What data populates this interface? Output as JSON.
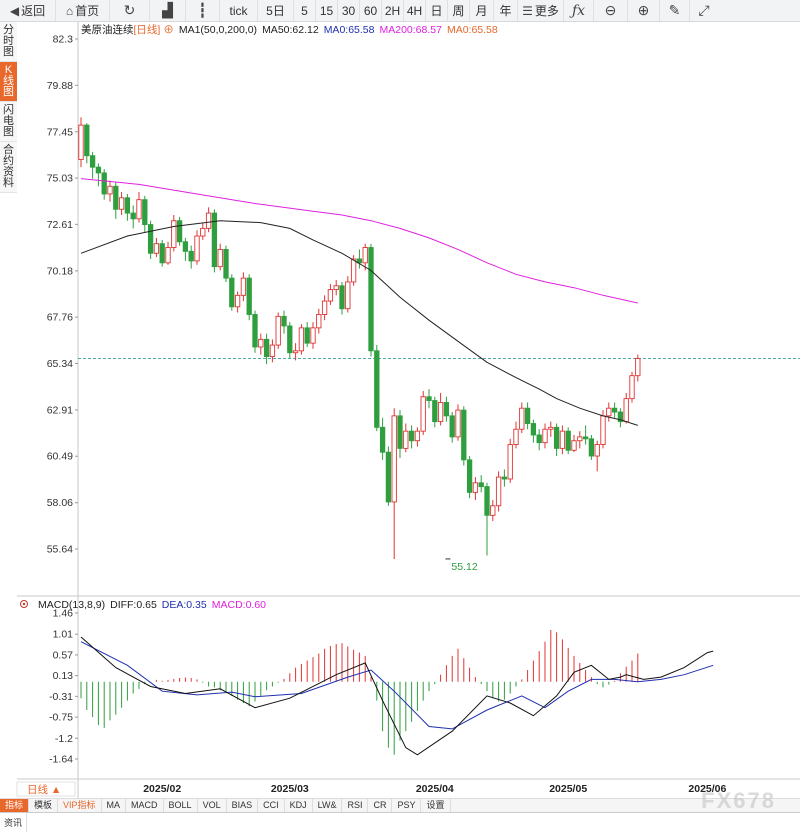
{
  "toolbar": {
    "back": "返回",
    "home": "首页",
    "tick": "tick",
    "periods": [
      "5日",
      "5",
      "15",
      "30",
      "60",
      "2H",
      "4H",
      "日",
      "周",
      "月",
      "年"
    ],
    "more": "更多"
  },
  "side_tabs": [
    {
      "label": "分时图",
      "active": false
    },
    {
      "label": "K线图",
      "active": true
    },
    {
      "label": "闪电图",
      "active": false
    },
    {
      "label": "合约资料",
      "active": false
    }
  ],
  "header": {
    "symbol": "美原油连续",
    "period": "[日线]",
    "ma1": "MA1(50,0,200,0)",
    "ma50": "MA50:62.12",
    "ma0a": "MA0:65.58",
    "ma200": "MA200:68.57",
    "ma0b": "MA0:65.58"
  },
  "macd_header": {
    "name": "MACD(13,8,9)",
    "diff": "DIFF:0.65",
    "dea": "DEA:0.35",
    "macd": "MACD:0.60"
  },
  "period_selector": "日线 ▲",
  "bottom_tabs": [
    "指标",
    "模板",
    "VIP指标",
    "MA",
    "MACD",
    "BOLL",
    "VOL",
    "BIAS",
    "CCI",
    "KDJ",
    "LW&",
    "RSI",
    "CR",
    "PSY",
    "设置"
  ],
  "news_tab": "资讯",
  "watermark": "FX678",
  "colors": {
    "up": "#e03434",
    "down": "#2e9e3e",
    "ma50": "#222222",
    "ma200": "#e020e0",
    "dea": "#1f2fb0",
    "last": "#1a8a8a",
    "accent": "#e8672a"
  },
  "chart_data": [
    {
      "type": "candlestick",
      "title": "美原油连续 [日线]",
      "ylim": [
        54.5,
        82.3
      ],
      "y_ticks": [
        82.3,
        79.88,
        77.45,
        75.03,
        72.61,
        70.18,
        67.76,
        65.34,
        62.91,
        60.49,
        58.06,
        55.64
      ],
      "x_ticks": [
        "2025/02",
        "2025/03",
        "2025/04",
        "2025/05",
        "2025/06"
      ],
      "x_tick_index": [
        14,
        36,
        61,
        84,
        108
      ],
      "last_price_line": 65.6,
      "low_annotation": {
        "index": 63,
        "value": 55.12,
        "label": "55.12"
      },
      "candles": [
        [
          76.0,
          77.8,
          78.2,
          75.6
        ],
        [
          77.8,
          76.2,
          77.9,
          75.8
        ],
        [
          76.2,
          75.6,
          76.4,
          75.0
        ],
        [
          75.6,
          75.3,
          75.8,
          74.6
        ],
        [
          75.3,
          74.2,
          75.5,
          73.9
        ],
        [
          74.2,
          74.6,
          74.9,
          73.8
        ],
        [
          74.6,
          73.4,
          74.8,
          72.9
        ],
        [
          73.4,
          74.0,
          74.3,
          73.1
        ],
        [
          74.0,
          73.2,
          74.2,
          72.8
        ],
        [
          73.2,
          72.9,
          73.6,
          72.4
        ],
        [
          72.9,
          73.9,
          74.3,
          72.7
        ],
        [
          73.9,
          72.6,
          74.1,
          72.2
        ],
        [
          72.6,
          71.1,
          72.8,
          70.8
        ],
        [
          71.1,
          71.6,
          71.9,
          70.9
        ],
        [
          71.6,
          70.6,
          71.8,
          70.4
        ],
        [
          70.6,
          71.4,
          71.7,
          70.5
        ],
        [
          71.4,
          72.8,
          73.1,
          71.2
        ],
        [
          72.8,
          71.7,
          73.0,
          71.5
        ],
        [
          71.7,
          71.2,
          71.9,
          70.7
        ],
        [
          71.2,
          70.7,
          71.5,
          70.3
        ],
        [
          70.7,
          72.0,
          72.3,
          70.5
        ],
        [
          72.0,
          72.4,
          72.7,
          71.8
        ],
        [
          72.4,
          73.2,
          73.5,
          72.2
        ],
        [
          73.2,
          70.4,
          73.4,
          70.1
        ],
        [
          70.4,
          71.3,
          71.6,
          70.2
        ],
        [
          71.3,
          69.8,
          71.5,
          69.6
        ],
        [
          69.8,
          68.3,
          70.0,
          68.1
        ],
        [
          68.3,
          68.9,
          69.1,
          68.0
        ],
        [
          68.9,
          69.8,
          70.1,
          68.6
        ],
        [
          69.8,
          67.9,
          70.0,
          67.6
        ],
        [
          67.9,
          66.2,
          68.1,
          65.9
        ],
        [
          66.2,
          66.6,
          66.9,
          65.8
        ],
        [
          66.6,
          65.7,
          66.9,
          65.3
        ],
        [
          65.7,
          66.3,
          66.6,
          65.4
        ],
        [
          66.3,
          67.8,
          68.0,
          66.1
        ],
        [
          67.8,
          67.3,
          68.1,
          66.9
        ],
        [
          67.3,
          65.9,
          67.5,
          65.6
        ],
        [
          65.9,
          66.0,
          66.4,
          65.5
        ],
        [
          66.0,
          67.2,
          67.4,
          65.8
        ],
        [
          67.2,
          66.4,
          67.5,
          66.2
        ],
        [
          66.4,
          67.2,
          67.5,
          66.1
        ],
        [
          67.2,
          67.9,
          68.2,
          66.9
        ],
        [
          67.9,
          68.6,
          68.9,
          67.6
        ],
        [
          68.6,
          69.2,
          69.5,
          68.4
        ],
        [
          69.2,
          69.4,
          69.7,
          68.9
        ],
        [
          69.4,
          68.2,
          69.6,
          67.9
        ],
        [
          68.2,
          69.6,
          69.9,
          68.0
        ],
        [
          69.6,
          70.8,
          71.0,
          69.4
        ],
        [
          70.8,
          70.6,
          71.3,
          70.3
        ],
        [
          70.6,
          71.4,
          71.6,
          70.2
        ],
        [
          71.4,
          66.0,
          71.6,
          65.7
        ],
        [
          66.0,
          62.0,
          66.3,
          61.8
        ],
        [
          62.0,
          60.7,
          62.5,
          60.3
        ],
        [
          60.7,
          58.1,
          61.0,
          57.9
        ],
        [
          58.1,
          62.6,
          63.0,
          55.12
        ],
        [
          62.6,
          60.9,
          62.9,
          60.4
        ],
        [
          60.9,
          61.8,
          62.2,
          60.7
        ],
        [
          61.8,
          61.3,
          62.1,
          60.9
        ],
        [
          61.3,
          61.8,
          62.0,
          61.0
        ],
        [
          61.8,
          63.6,
          63.9,
          61.6
        ],
        [
          63.6,
          63.4,
          64.0,
          63.0
        ],
        [
          63.4,
          62.3,
          63.6,
          62.0
        ],
        [
          62.3,
          63.3,
          63.8,
          62.1
        ],
        [
          63.3,
          62.6,
          63.6,
          62.3
        ],
        [
          62.6,
          61.5,
          62.8,
          61.2
        ],
        [
          61.5,
          62.9,
          63.2,
          61.3
        ],
        [
          62.9,
          60.3,
          63.1,
          60.0
        ],
        [
          60.3,
          58.6,
          60.5,
          58.3
        ],
        [
          58.6,
          59.1,
          59.4,
          58.2
        ],
        [
          59.1,
          58.9,
          59.5,
          58.6
        ],
        [
          58.9,
          57.4,
          59.1,
          55.3
        ],
        [
          57.4,
          57.9,
          58.2,
          57.1
        ],
        [
          57.9,
          59.4,
          59.7,
          57.6
        ],
        [
          59.4,
          59.3,
          59.8,
          58.9
        ],
        [
          59.3,
          61.1,
          61.4,
          59.1
        ],
        [
          61.1,
          61.9,
          62.3,
          60.9
        ],
        [
          61.9,
          63.0,
          63.3,
          61.7
        ],
        [
          63.0,
          62.2,
          63.3,
          61.9
        ],
        [
          62.2,
          61.6,
          62.4,
          61.2
        ],
        [
          61.6,
          61.2,
          61.9,
          60.8
        ],
        [
          61.2,
          61.9,
          62.2,
          60.9
        ],
        [
          61.9,
          62.0,
          62.3,
          61.5
        ],
        [
          62.0,
          60.9,
          62.2,
          60.5
        ],
        [
          60.9,
          61.8,
          62.1,
          60.6
        ],
        [
          61.8,
          60.8,
          62.0,
          60.6
        ],
        [
          60.8,
          61.3,
          61.6,
          60.7
        ],
        [
          61.3,
          61.5,
          61.8,
          60.9
        ],
        [
          61.5,
          61.4,
          62.1,
          61.1
        ],
        [
          61.4,
          60.5,
          61.6,
          60.3
        ],
        [
          60.5,
          61.1,
          61.3,
          59.7
        ],
        [
          61.1,
          62.6,
          62.9,
          60.9
        ],
        [
          62.6,
          63.0,
          63.3,
          62.3
        ],
        [
          63.0,
          62.8,
          63.3,
          62.5
        ],
        [
          62.8,
          62.3,
          63.0,
          62.0
        ],
        [
          62.3,
          63.5,
          63.8,
          62.2
        ],
        [
          63.5,
          64.7,
          64.9,
          63.3
        ],
        [
          64.7,
          65.6,
          65.8,
          64.4
        ]
      ],
      "ma50": [
        [
          0,
          71.1
        ],
        [
          8,
          72.0
        ],
        [
          16,
          72.5
        ],
        [
          24,
          72.8
        ],
        [
          31,
          72.7
        ],
        [
          36,
          72.4
        ],
        [
          40,
          71.8
        ],
        [
          45,
          71.1
        ],
        [
          50,
          70.2
        ],
        [
          55,
          68.8
        ],
        [
          60,
          67.6
        ],
        [
          65,
          66.5
        ],
        [
          70,
          65.4
        ],
        [
          75,
          64.6
        ],
        [
          79,
          64.0
        ],
        [
          82,
          63.5
        ],
        [
          86,
          63.0
        ],
        [
          90,
          62.6
        ],
        [
          93,
          62.4
        ],
        [
          96,
          62.1
        ]
      ],
      "ma200": [
        [
          0,
          75.0
        ],
        [
          10,
          74.7
        ],
        [
          20,
          74.2
        ],
        [
          30,
          73.7
        ],
        [
          40,
          73.3
        ],
        [
          45,
          73.1
        ],
        [
          50,
          72.8
        ],
        [
          55,
          72.4
        ],
        [
          60,
          71.9
        ],
        [
          65,
          71.3
        ],
        [
          70,
          70.6
        ],
        [
          75,
          70.0
        ],
        [
          80,
          69.6
        ],
        [
          85,
          69.3
        ],
        [
          90,
          68.9
        ],
        [
          96,
          68.5
        ]
      ]
    },
    {
      "type": "macd",
      "title": "MACD(13,8,9)",
      "ylim": [
        -1.9,
        1.6
      ],
      "y_ticks": [
        1.46,
        1.01,
        0.57,
        0.13,
        -0.31,
        -0.75,
        -1.2,
        -1.64
      ],
      "histogram": [
        -0.35,
        -0.6,
        -0.75,
        -0.92,
        -0.98,
        -0.82,
        -0.7,
        -0.55,
        -0.4,
        -0.25,
        -0.15,
        -0.05,
        -0.01,
        0.04,
        0.02,
        0.04,
        0.06,
        0.08,
        0.09,
        0.08,
        0.05,
        -0.02,
        -0.1,
        -0.12,
        -0.18,
        -0.22,
        -0.3,
        -0.38,
        -0.45,
        -0.52,
        -0.42,
        -0.3,
        -0.18,
        -0.1,
        -0.02,
        0.06,
        0.18,
        0.3,
        0.38,
        0.45,
        0.52,
        0.6,
        0.7,
        0.76,
        0.8,
        0.82,
        0.75,
        0.68,
        0.62,
        0.55,
        0.1,
        -0.4,
        -1.05,
        -1.4,
        -1.55,
        -1.25,
        -1.05,
        -0.85,
        -0.62,
        -0.4,
        -0.2,
        -0.05,
        0.15,
        0.35,
        0.55,
        0.7,
        0.5,
        0.3,
        0.1,
        -0.05,
        -0.2,
        -0.35,
        -0.42,
        -0.38,
        -0.25,
        -0.1,
        0.05,
        0.25,
        0.45,
        0.65,
        0.85,
        1.1,
        1.05,
        0.9,
        0.72,
        0.55,
        0.4,
        0.25,
        0.1,
        -0.05,
        -0.12,
        -0.06,
        0.02,
        0.18,
        0.32,
        0.45,
        0.6
      ],
      "diff": [
        [
          0,
          0.95
        ],
        [
          6,
          0.3
        ],
        [
          12,
          -0.1
        ],
        [
          18,
          -0.25
        ],
        [
          24,
          -0.15
        ],
        [
          30,
          -0.55
        ],
        [
          36,
          -0.35
        ],
        [
          44,
          0.15
        ],
        [
          49,
          0.4
        ],
        [
          52,
          -0.4
        ],
        [
          56,
          -1.4
        ],
        [
          58,
          -1.55
        ],
        [
          64,
          -1.05
        ],
        [
          70,
          -0.3
        ],
        [
          74,
          -0.45
        ],
        [
          78,
          -0.72
        ],
        [
          82,
          -0.3
        ],
        [
          85,
          0.2
        ],
        [
          88,
          0.35
        ],
        [
          91,
          0.05
        ],
        [
          93,
          0.1
        ],
        [
          94,
          0.15
        ],
        [
          97,
          0.05
        ],
        [
          100,
          0.1
        ],
        [
          104,
          0.3
        ],
        [
          108,
          0.62
        ],
        [
          109,
          0.65
        ]
      ],
      "dea": [
        [
          0,
          0.85
        ],
        [
          8,
          0.35
        ],
        [
          14,
          -0.2
        ],
        [
          20,
          -0.28
        ],
        [
          26,
          -0.22
        ],
        [
          30,
          -0.32
        ],
        [
          38,
          -0.25
        ],
        [
          46,
          0.1
        ],
        [
          50,
          0.25
        ],
        [
          54,
          -0.2
        ],
        [
          60,
          -0.95
        ],
        [
          64,
          -1.0
        ],
        [
          70,
          -0.6
        ],
        [
          76,
          -0.3
        ],
        [
          80,
          -0.55
        ],
        [
          84,
          -0.2
        ],
        [
          88,
          0.05
        ],
        [
          92,
          0.05
        ],
        [
          96,
          0.0
        ],
        [
          100,
          0.05
        ],
        [
          104,
          0.15
        ],
        [
          109,
          0.35
        ]
      ]
    }
  ]
}
